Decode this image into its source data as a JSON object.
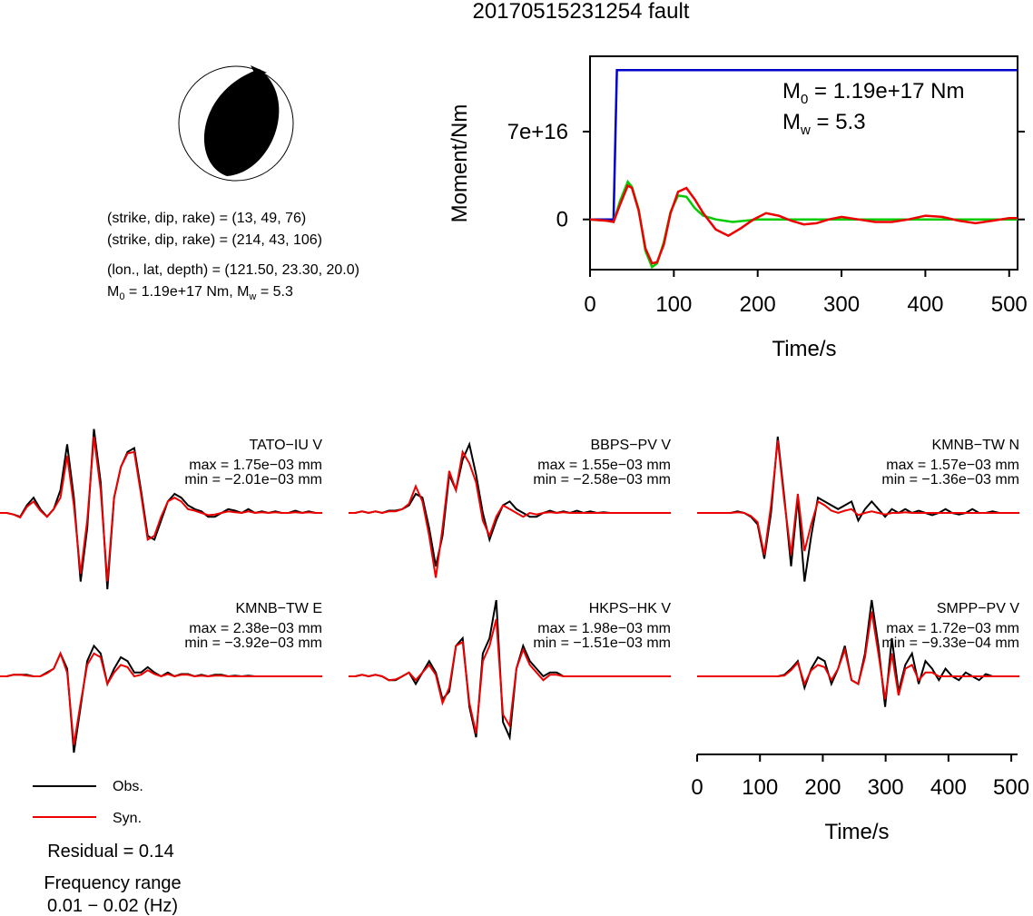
{
  "title": "20170515231254 fault",
  "beachball": {
    "shade_color": "#000000"
  },
  "mechanism": {
    "line1": "(strike, dip, rake) = (13, 49, 76)",
    "line2": "(strike, dip, rake) = (214, 43, 106)",
    "line3": "(lon., lat, depth) = (121.50, 23.30, 20.0)",
    "m0_label": "M",
    "m0_sub": "0",
    "m0_value": " = 1.19e+17 Nm, M",
    "mw_sub": "w",
    "mw_value": " = 5.3"
  },
  "chart_data": [
    {
      "type": "line",
      "ylabel": "Moment/Nm",
      "xlabel": "Time/s",
      "xlim": [
        0,
        510
      ],
      "ylim": [
        -40000000000000000,
        130000000000000000
      ],
      "xticks": [
        "0",
        "100",
        "200",
        "300",
        "400",
        "500"
      ],
      "yticks": [
        "0",
        "7e+16"
      ],
      "annotation": {
        "m0_label": "M",
        "m0_sub": "0",
        "m0_value": " = 1.19e+17 Nm",
        "mw_label": "M",
        "mw_sub": "w",
        "mw_value": " = 5.3"
      },
      "series": [
        {
          "color": "#0000cc",
          "x": [
            0,
            22,
            28,
            32,
            510
          ],
          "y": [
            0,
            0,
            0,
            119000000000000000,
            119000000000000000
          ]
        },
        {
          "color": "#00cc00",
          "x": [
            0,
            20,
            28,
            36,
            45,
            50,
            58,
            66,
            74,
            80,
            88,
            96,
            105,
            115,
            125,
            135,
            150,
            170,
            200,
            250,
            300,
            400,
            510
          ],
          "y": [
            0,
            -1000000000000000,
            -2000000000000000,
            15000000000000000,
            30000000000000000,
            26000000000000000,
            8000000000000000,
            -25000000000000000,
            -38000000000000000,
            -35000000000000000,
            -18000000000000000,
            6000000000000000,
            19000000000000000,
            18000000000000000,
            9000000000000000,
            3000000000000000,
            0,
            -2000000000000000,
            0,
            0,
            0,
            0,
            0
          ]
        },
        {
          "color": "#ee0000",
          "x": [
            0,
            20,
            28,
            36,
            45,
            50,
            58,
            66,
            74,
            80,
            88,
            96,
            105,
            115,
            125,
            135,
            150,
            165,
            180,
            195,
            210,
            225,
            240,
            255,
            270,
            285,
            300,
            320,
            340,
            360,
            380,
            400,
            420,
            440,
            460,
            480,
            500,
            510
          ],
          "y": [
            0,
            -1000000000000000,
            -2000000000000000,
            12000000000000000,
            27000000000000000,
            25000000000000000,
            7000000000000000,
            -23000000000000000,
            -35000000000000000,
            -34000000000000000,
            -20000000000000000,
            5000000000000000,
            22000000000000000,
            25000000000000000,
            16000000000000000,
            5000000000000000,
            -8000000000000000,
            -13000000000000000,
            -7000000000000000,
            0,
            5000000000000000,
            3000000000000000,
            -1000000000000000,
            -4000000000000000,
            -3000000000000000,
            0,
            2000000000000000,
            0,
            -2000000000000000,
            -2000000000000000,
            0,
            3000000000000000,
            2000000000000000,
            -1000000000000000,
            -3000000000000000,
            -1000000000000000,
            1000000000000000,
            1000000000000000
          ]
        }
      ]
    },
    {
      "type": "line",
      "xlabel": "Time/s",
      "xlim": [
        0,
        510
      ],
      "xticks": [
        "0",
        "100",
        "200",
        "300",
        "400",
        "500"
      ],
      "legend": [
        {
          "name": "Obs.",
          "color": "#000000"
        },
        {
          "name": "Syn.",
          "color": "#ee0000"
        }
      ],
      "residual": "Residual = 0.14",
      "frequency_label": "Frequency range",
      "frequency_value": "0.01 − 0.02 (Hz)",
      "panels": [
        {
          "station": "TATO−IU V",
          "max": "max = 1.75e−03 mm",
          "min": "min = −2.01e−03 mm",
          "obs": [
            0,
            0,
            -0.02,
            -0.05,
            0.1,
            0.2,
            0.05,
            -0.05,
            0.05,
            0.3,
            0.9,
            0.2,
            -0.9,
            -0.2,
            1.1,
            0.4,
            -1.0,
            0.2,
            0.6,
            0.8,
            0.85,
            0.3,
            -0.3,
            -0.35,
            -0.1,
            0.15,
            0.25,
            0.2,
            0.1,
            0.05,
            0.02,
            -0.05,
            -0.05,
            0,
            0.05,
            0.03,
            0,
            0.05,
            0,
            0.02,
            0,
            0.02,
            0,
            0,
            0.03,
            0,
            0.02,
            0,
            0
          ],
          "syn": [
            0,
            0,
            -0.02,
            -0.06,
            0.08,
            0.15,
            0.03,
            -0.05,
            0.05,
            0.2,
            0.75,
            0.1,
            -0.8,
            -0.1,
            1.0,
            0.3,
            -0.9,
            0.2,
            0.6,
            0.78,
            0.8,
            0.25,
            -0.35,
            -0.3,
            -0.05,
            0.15,
            0.2,
            0.15,
            0.05,
            0.03,
            0,
            -0.03,
            -0.02,
            0,
            0.02,
            0.01,
            0,
            0.02,
            0,
            0.01,
            0,
            0.01,
            0,
            0,
            0.01,
            0,
            0.01,
            0,
            0
          ]
        },
        {
          "station": "BBPS−PV V",
          "max": "max = 1.55e−03 mm",
          "min": "min = −2.58e−03 mm",
          "obs": [
            0,
            0,
            0.02,
            0,
            0.02,
            0,
            0.03,
            0.03,
            0.05,
            0.1,
            0.25,
            0.2,
            -0.2,
            -0.7,
            -0.3,
            0.5,
            0.3,
            0.7,
            0.9,
            0.5,
            0,
            -0.35,
            -0.1,
            0.1,
            0.15,
            0.05,
            0,
            -0.05,
            -0.05,
            0,
            0.03,
            0,
            0.02,
            0,
            0.03,
            0,
            0.02,
            0,
            0.01,
            0,
            0,
            0,
            0,
            0,
            0,
            0,
            0,
            0,
            0
          ],
          "syn": [
            0,
            0,
            0.02,
            0,
            0.02,
            0,
            0.02,
            0.02,
            0.05,
            0.12,
            0.35,
            0.15,
            -0.3,
            -0.85,
            -0.2,
            0.55,
            0.3,
            0.8,
            0.65,
            0.4,
            -0.1,
            -0.3,
            -0.05,
            0.1,
            0.05,
            0,
            -0.05,
            0,
            -0.02,
            0,
            0.01,
            0,
            0.01,
            0,
            0,
            0,
            0,
            0,
            0,
            0,
            0,
            0,
            0,
            0,
            0,
            0,
            0,
            0,
            0
          ]
        },
        {
          "station": "KMNB−TW N",
          "max": "max = 1.57e−03 mm",
          "min": "min = −1.36e−03 mm",
          "obs": [
            0,
            0,
            0,
            0,
            0,
            0,
            0.02,
            0,
            -0.05,
            -0.15,
            -0.6,
            0,
            1.0,
            0.2,
            -0.7,
            0.2,
            -0.9,
            -0.3,
            0.2,
            0.15,
            0.1,
            0.05,
            0.1,
            0.15,
            -0.1,
            0.05,
            0.15,
            0.05,
            -0.05,
            0.05,
            0,
            0.05,
            0,
            0.03,
            0,
            -0.03,
            0,
            0.05,
            0,
            -0.02,
            0,
            0.05,
            0,
            0,
            0.02,
            0,
            0,
            0,
            0
          ],
          "syn": [
            0,
            0,
            0,
            0,
            0,
            0,
            0.01,
            0,
            -0.04,
            -0.12,
            -0.55,
            0.1,
            0.95,
            0.15,
            -0.55,
            0.25,
            -0.5,
            -0.15,
            0.15,
            0.1,
            0.03,
            0,
            0.03,
            0.05,
            -0.03,
            0,
            0.02,
            0,
            -0.02,
            0,
            0,
            0.01,
            0,
            0,
            0,
            0,
            0,
            0,
            0,
            0,
            0,
            0,
            0,
            0,
            0,
            0,
            0,
            0,
            0
          ]
        },
        {
          "station": "KMNB−TW E",
          "max": "max = 2.38e−03 mm",
          "min": "min = −3.92e−03 mm",
          "obs": [
            0,
            0,
            0.02,
            0.02,
            0.02,
            0,
            0,
            0.05,
            0.1,
            0.3,
            0.1,
            -1.0,
            -0.4,
            0.2,
            0.4,
            0.3,
            -0.1,
            0.1,
            0.25,
            0.2,
            0.05,
            0.05,
            0.12,
            0.05,
            0,
            0.05,
            0,
            0.03,
            0.03,
            0,
            0.02,
            0,
            0.02,
            0.02,
            0,
            0.01,
            0,
            0.01,
            0,
            0,
            0,
            0,
            0,
            0,
            0,
            0,
            0,
            0,
            0
          ],
          "syn": [
            0,
            0,
            0.02,
            0.02,
            0.01,
            0,
            0,
            0.04,
            0.1,
            0.3,
            0.05,
            -0.9,
            -0.35,
            0.15,
            0.3,
            0.25,
            -0.1,
            0.05,
            0.15,
            0.12,
            0,
            0.02,
            0.08,
            0.03,
            0,
            0.03,
            0,
            0.02,
            0.02,
            0,
            0.01,
            0,
            0.01,
            0.01,
            0,
            0,
            0,
            0,
            0,
            0,
            0,
            0,
            0,
            0,
            0,
            0,
            0,
            0,
            0
          ]
        },
        {
          "station": "HKPS−HK V",
          "max": "max = 1.98e−03 mm",
          "min": "min = −1.51e−03 mm",
          "obs": [
            0,
            0,
            0.02,
            0,
            0.02,
            0,
            -0.05,
            -0.05,
            0,
            0.05,
            -0.1,
            0.05,
            0.2,
            0.05,
            -0.3,
            -0.2,
            0.4,
            0.5,
            -0.4,
            -0.8,
            0.3,
            0.5,
            1.0,
            -0.6,
            -0.8,
            0.1,
            0.4,
            0.2,
            0.1,
            0,
            0.05,
            0.05,
            0,
            0,
            0,
            0,
            0,
            0,
            0,
            0,
            0,
            0,
            0,
            0,
            0,
            0,
            0,
            0,
            0
          ],
          "syn": [
            0,
            0,
            0.02,
            0,
            0.02,
            0,
            -0.05,
            -0.04,
            0,
            0.05,
            -0.05,
            0.05,
            0.15,
            0.02,
            -0.35,
            -0.15,
            0.4,
            0.45,
            -0.35,
            -0.75,
            0.2,
            0.4,
            0.75,
            -0.5,
            -0.65,
            0.1,
            0.35,
            0.15,
            0.05,
            -0.05,
            0.02,
            0.02,
            0,
            0,
            0,
            0,
            0,
            0,
            0,
            0,
            0,
            0,
            0,
            0,
            0,
            0,
            0,
            0,
            0
          ]
        },
        {
          "station": "SMPP−PV V",
          "max": "max = 1.72e−03 mm",
          "min": "min = −9.33e−04 mm",
          "obs": [
            0,
            0,
            0,
            0,
            0,
            0,
            0,
            0,
            0,
            0,
            0,
            0,
            0,
            0.02,
            0.1,
            0.2,
            -0.15,
            0.1,
            0.25,
            0.2,
            -0.1,
            0.1,
            0.4,
            -0.05,
            -0.1,
            0.3,
            1.0,
            0.4,
            -0.4,
            0.5,
            -0.2,
            0.15,
            0.3,
            -0.1,
            0.2,
            0.1,
            -0.05,
            0.1,
            0,
            -0.05,
            0.05,
            0,
            -0.05,
            0.03,
            0,
            0,
            0,
            0,
            0
          ],
          "syn": [
            0,
            0,
            0,
            0,
            0,
            0,
            0,
            0,
            0,
            0,
            0,
            0,
            0,
            0.01,
            0.08,
            0.18,
            -0.1,
            0.08,
            0.15,
            0.12,
            -0.05,
            0.1,
            0.35,
            -0.05,
            -0.1,
            0.25,
            0.85,
            0.3,
            -0.3,
            0.3,
            -0.25,
            0.1,
            0.15,
            -0.05,
            0.05,
            0.05,
            0,
            0,
            0,
            0,
            0,
            0,
            0,
            0,
            0,
            0,
            0,
            0,
            0
          ]
        }
      ]
    }
  ]
}
